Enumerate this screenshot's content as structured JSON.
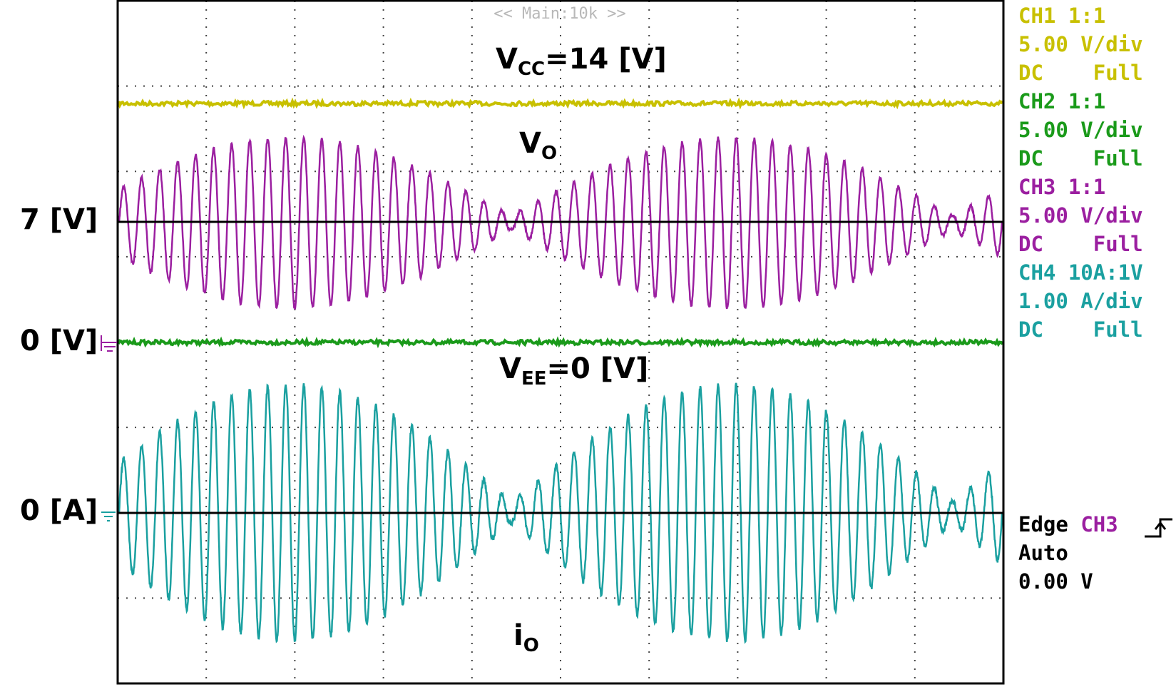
{
  "screen": {
    "header": "<< Main:10k >>",
    "colors": {
      "ch1": "#c8c000",
      "ch2": "#1a9a1a",
      "ch3": "#9b1fa0",
      "ch4": "#1aa0a0",
      "grid": "#444444",
      "frame": "#000000"
    }
  },
  "channels": [
    {
      "name": "CH1",
      "probe": "1:1",
      "scale": "5.00 V/div",
      "coupling": "DC",
      "bw": "Full",
      "color": "#c8c000"
    },
    {
      "name": "CH2",
      "probe": "1:1",
      "scale": "5.00 V/div",
      "coupling": "DC",
      "bw": "Full",
      "color": "#1a9a1a"
    },
    {
      "name": "CH3",
      "probe": "1:1",
      "scale": "5.00 V/div",
      "coupling": "DC",
      "bw": "Full",
      "color": "#9b1fa0"
    },
    {
      "name": "CH4",
      "probe": "10A:1V",
      "scale": "1.00 A/div",
      "coupling": "DC",
      "bw": "Full",
      "color": "#1aa0a0"
    }
  ],
  "trigger": {
    "type": "Edge",
    "source": "CH3",
    "mode": "Auto",
    "level": "0.00 V",
    "slope_icon": "rising-edge-icon"
  },
  "annotations": {
    "vcc": {
      "main": "V",
      "sub": "CC",
      "rest": "=14 [V]"
    },
    "vo": {
      "main": "V",
      "sub": "O"
    },
    "vee": {
      "main": "V",
      "sub": "EE",
      "rest": "=0 [V]"
    },
    "io": {
      "main": "i",
      "sub": "O"
    },
    "y_7v": "7 [V]",
    "y_0v": "0 [V]",
    "y_0a": "0 [A]"
  },
  "chart_data": {
    "type": "line",
    "title": "",
    "grid": true,
    "divisions": {
      "x": 10,
      "y": 8
    },
    "series": [
      {
        "name": "CH1",
        "kind": "dc",
        "color": "#c8c000",
        "level_V": 14
      },
      {
        "name": "CH2",
        "kind": "dc",
        "color": "#1a9a1a",
        "level_V": 0
      },
      {
        "name": "CH3",
        "kind": "modulated",
        "color": "#9b1fa0",
        "offset_V": 7,
        "amplitude_V": 5,
        "carrier_cycles": 49,
        "envelope_lobes": 4
      },
      {
        "name": "CH4",
        "kind": "modulated",
        "color": "#1aa0a0",
        "offset_A": 0,
        "amplitude_A": 1.5,
        "carrier_cycles": 49,
        "envelope_lobes": 4
      }
    ]
  }
}
